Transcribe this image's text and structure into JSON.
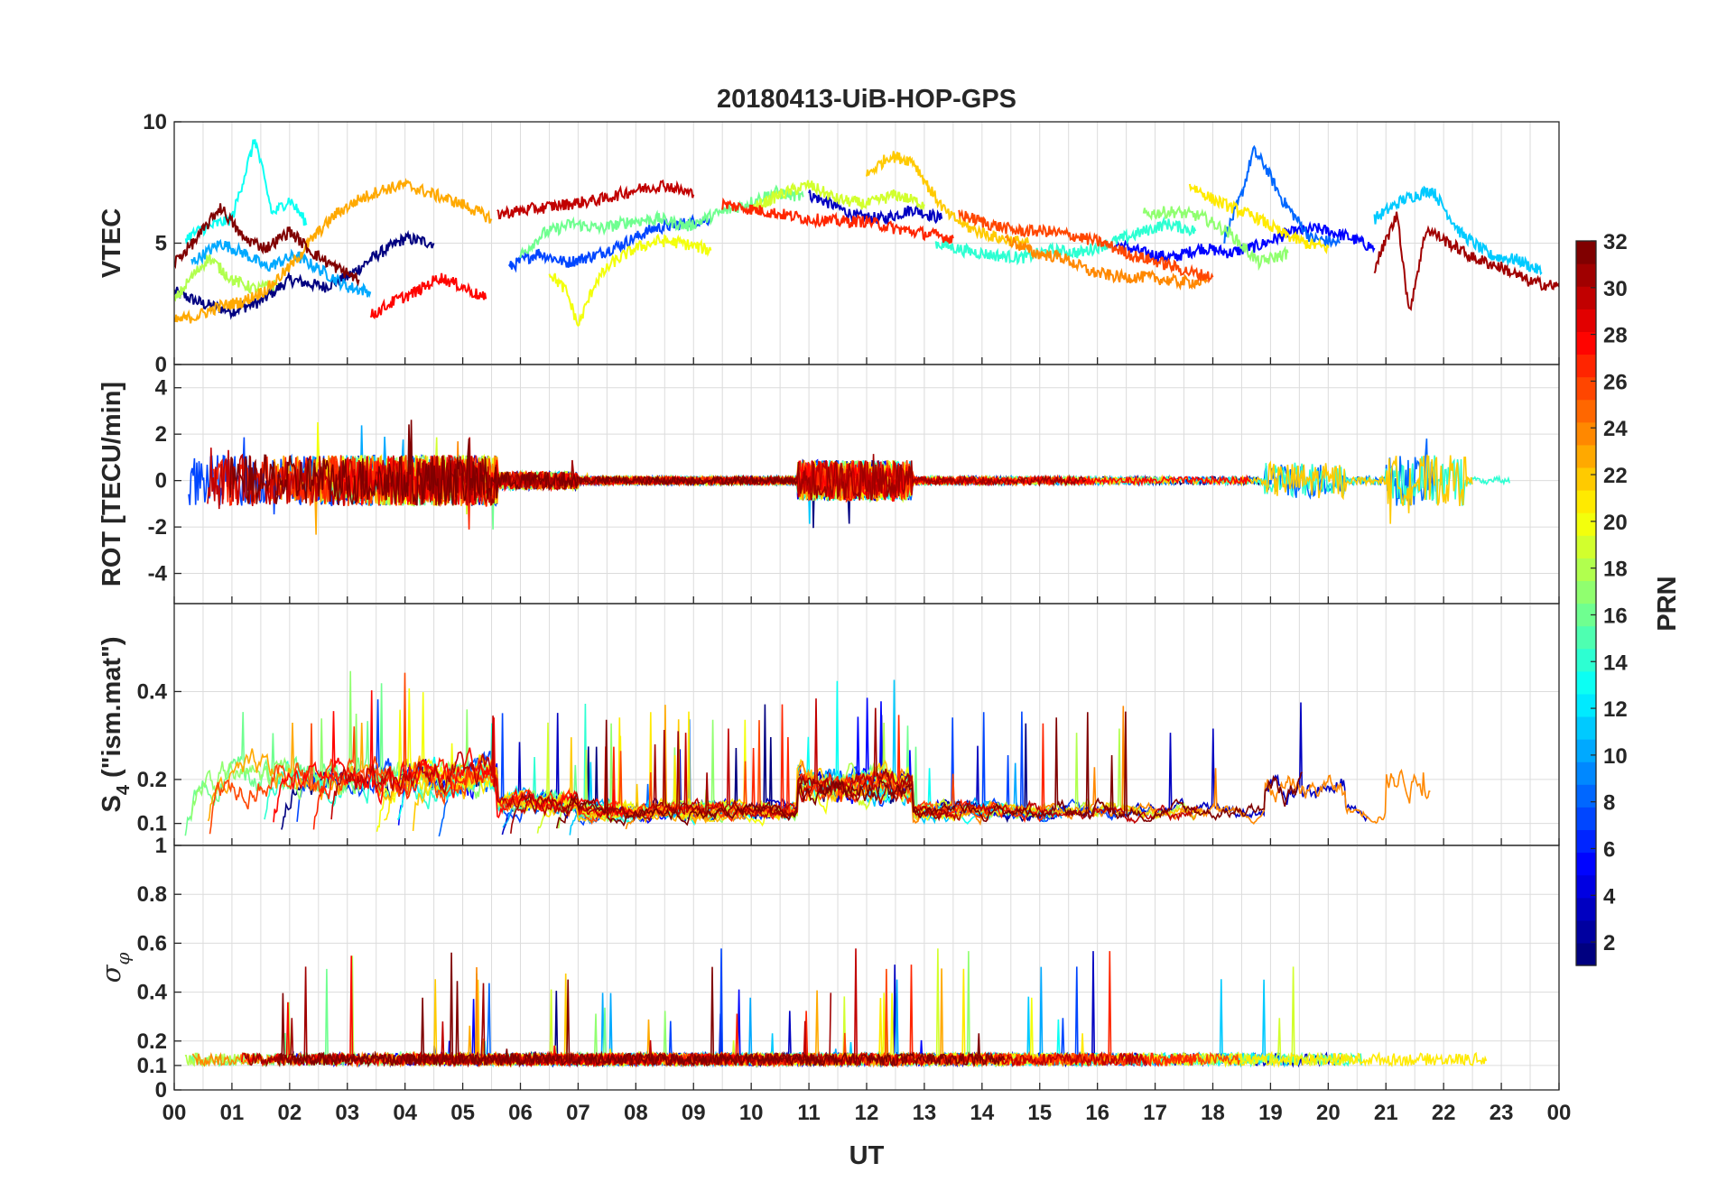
{
  "chart_data": {
    "type": "line",
    "title": "20180413-UiB-HOP-GPS",
    "xlabel": "UT",
    "x_tick_labels": [
      "00",
      "01",
      "02",
      "03",
      "04",
      "05",
      "06",
      "07",
      "08",
      "09",
      "10",
      "11",
      "12",
      "13",
      "14",
      "15",
      "16",
      "17",
      "18",
      "19",
      "20",
      "21",
      "22",
      "23",
      "00"
    ],
    "xlim": [
      0,
      24
    ],
    "grid": true,
    "panels": [
      {
        "id": "vtec",
        "ylabel": "VTEC",
        "ylim": [
          0,
          10
        ],
        "yticks": [
          0,
          5,
          10
        ],
        "yticklabels": [
          "0",
          "5",
          "10"
        ]
      },
      {
        "id": "rot",
        "ylabel": "ROT [TECU/min]",
        "ylim": [
          -5.3,
          5.0
        ],
        "yticks": [
          -4,
          -2,
          0,
          2,
          4
        ],
        "yticklabels": [
          "-4",
          "-2",
          "0",
          "2",
          "4"
        ]
      },
      {
        "id": "s4",
        "ylabel_main": "S",
        "ylabel_sub": "4",
        "ylabel_rest": " (\"ism.mat\")",
        "ylim": [
          0.05,
          0.6
        ],
        "yticks": [
          0.1,
          0.2,
          0.4
        ],
        "yticklabels": [
          "0.1",
          "0.2",
          "0.4"
        ]
      },
      {
        "id": "sigma",
        "ylabel_main": "σ",
        "ylabel_sub": "φ",
        "ylim": [
          0,
          1
        ],
        "yticks": [
          0,
          0.1,
          0.2,
          0.4,
          0.6,
          0.8,
          1
        ],
        "yticklabels": [
          "0",
          "0.1",
          "0.2",
          "0.4",
          "0.6",
          "0.8",
          "1"
        ]
      }
    ],
    "colorbar": {
      "label": "PRN",
      "range": [
        1,
        32
      ],
      "ticks": [
        2,
        4,
        6,
        8,
        10,
        12,
        14,
        16,
        18,
        20,
        22,
        24,
        26,
        28,
        30,
        32
      ],
      "colormap": "jet",
      "levels": 32
    },
    "series_note_prn": [
      1,
      3,
      5,
      7,
      8,
      10,
      11,
      13,
      14,
      16,
      17,
      18,
      19,
      20,
      21,
      22,
      23,
      24,
      26,
      27,
      28,
      30,
      31,
      32
    ],
    "vtec_series": [
      {
        "prn": 1,
        "points": [
          [
            0,
            3.0
          ],
          [
            0.5,
            2.5
          ],
          [
            1,
            2.2
          ],
          [
            1.5,
            2.6
          ],
          [
            2,
            3.5
          ],
          [
            2.6,
            3.2
          ],
          [
            3,
            3.6
          ],
          [
            3.5,
            4.5
          ],
          [
            4,
            5.2
          ],
          [
            4.5,
            5.0
          ]
        ]
      },
      {
        "prn": 3,
        "points": [
          [
            11,
            7.0
          ],
          [
            11.4,
            6.6
          ],
          [
            11.8,
            6.1
          ],
          [
            12.3,
            6.0
          ],
          [
            12.8,
            6.4
          ],
          [
            13.3,
            6.0
          ]
        ]
      },
      {
        "prn": 5,
        "points": [
          [
            16.3,
            5.0
          ],
          [
            16.8,
            4.6
          ],
          [
            17.3,
            4.4
          ],
          [
            17.8,
            4.8
          ],
          [
            18.3,
            4.6
          ],
          [
            18.8,
            4.9
          ],
          [
            19.3,
            5.4
          ],
          [
            19.8,
            5.6
          ],
          [
            20.3,
            5.3
          ],
          [
            20.8,
            4.8
          ]
        ]
      },
      {
        "prn": 7,
        "points": [
          [
            5.8,
            4.0
          ],
          [
            6.3,
            4.6
          ],
          [
            6.8,
            4.2
          ],
          [
            7.3,
            4.5
          ],
          [
            7.8,
            5.0
          ],
          [
            8.3,
            5.6
          ],
          [
            8.8,
            5.8
          ],
          [
            9.3,
            6.0
          ]
        ]
      },
      {
        "prn": 8,
        "points": [
          [
            18.2,
            5.2
          ],
          [
            18.5,
            7.0
          ],
          [
            18.7,
            8.8
          ],
          [
            18.9,
            8.2
          ],
          [
            19.2,
            6.8
          ],
          [
            19.7,
            5.2
          ],
          [
            20.2,
            5.0
          ]
        ]
      },
      {
        "prn": 10,
        "points": [
          [
            0.3,
            4.2
          ],
          [
            0.8,
            5.0
          ],
          [
            1.2,
            4.6
          ],
          [
            1.6,
            4.0
          ],
          [
            2.1,
            4.5
          ],
          [
            2.6,
            3.8
          ],
          [
            3.0,
            3.2
          ],
          [
            3.4,
            3.0
          ]
        ]
      },
      {
        "prn": 11,
        "points": [
          [
            20.8,
            6.0
          ],
          [
            21.3,
            6.8
          ],
          [
            21.8,
            7.2
          ],
          [
            22.3,
            5.4
          ],
          [
            22.8,
            4.5
          ],
          [
            23.3,
            4.3
          ],
          [
            23.7,
            3.8
          ]
        ]
      },
      {
        "prn": 13,
        "points": [
          [
            0.2,
            5.2
          ],
          [
            0.5,
            5.6
          ],
          [
            1.0,
            6.0
          ],
          [
            1.4,
            9.3
          ],
          [
            1.7,
            6.2
          ],
          [
            2.0,
            6.8
          ],
          [
            2.3,
            5.8
          ]
        ]
      },
      {
        "prn": 14,
        "points": [
          [
            13.2,
            5.0
          ],
          [
            13.7,
            4.7
          ],
          [
            14.2,
            4.5
          ],
          [
            14.7,
            4.4
          ],
          [
            15.2,
            4.7
          ],
          [
            15.7,
            4.6
          ],
          [
            16.2,
            5.0
          ],
          [
            16.7,
            5.4
          ],
          [
            17.2,
            5.8
          ],
          [
            17.7,
            5.5
          ]
        ]
      },
      {
        "prn": 16,
        "points": [
          [
            6.0,
            4.5
          ],
          [
            6.4,
            5.4
          ],
          [
            6.9,
            5.8
          ],
          [
            7.4,
            5.6
          ],
          [
            7.9,
            5.9
          ],
          [
            8.4,
            6.0
          ],
          [
            8.9,
            5.7
          ],
          [
            9.4,
            6.2
          ],
          [
            9.9,
            6.6
          ],
          [
            10.4,
            7.1
          ],
          [
            10.9,
            6.9
          ]
        ]
      },
      {
        "prn": 17,
        "points": [
          [
            16.8,
            6.2
          ],
          [
            17.3,
            6.3
          ],
          [
            17.8,
            6.1
          ],
          [
            18.3,
            5.4
          ],
          [
            18.8,
            4.2
          ],
          [
            19.3,
            4.6
          ]
        ]
      },
      {
        "prn": 18,
        "points": [
          [
            0.0,
            2.6
          ],
          [
            0.3,
            3.6
          ],
          [
            0.6,
            4.4
          ],
          [
            1.0,
            3.5
          ],
          [
            1.4,
            3.1
          ],
          [
            1.8,
            3.3
          ]
        ]
      },
      {
        "prn": 19,
        "points": [
          [
            10.0,
            6.4
          ],
          [
            10.5,
            7.0
          ],
          [
            11.0,
            7.4
          ],
          [
            11.5,
            6.8
          ],
          [
            12.0,
            6.6
          ],
          [
            12.5,
            7.0
          ],
          [
            13.0,
            6.6
          ]
        ]
      },
      {
        "prn": 20,
        "points": [
          [
            6.5,
            3.8
          ],
          [
            6.8,
            3.0
          ],
          [
            7.0,
            1.6
          ],
          [
            7.3,
            3.4
          ],
          [
            7.6,
            4.2
          ],
          [
            8.0,
            4.8
          ],
          [
            8.4,
            5.1
          ],
          [
            8.8,
            5.0
          ],
          [
            9.3,
            4.7
          ]
        ]
      },
      {
        "prn": 21,
        "points": [
          [
            17.6,
            7.4
          ],
          [
            18.0,
            6.8
          ],
          [
            18.4,
            6.4
          ],
          [
            18.8,
            6.0
          ],
          [
            19.2,
            5.4
          ],
          [
            19.6,
            5.0
          ],
          [
            20.0,
            4.8
          ]
        ]
      },
      {
        "prn": 22,
        "points": [
          [
            12.0,
            7.8
          ],
          [
            12.4,
            8.6
          ],
          [
            12.8,
            8.4
          ],
          [
            13.1,
            7.2
          ],
          [
            13.4,
            6.2
          ],
          [
            13.8,
            5.6
          ],
          [
            14.3,
            5.2
          ],
          [
            14.8,
            5.0
          ]
        ]
      },
      {
        "prn": 23,
        "points": [
          [
            0.0,
            1.8
          ],
          [
            0.4,
            2.0
          ],
          [
            0.8,
            2.4
          ],
          [
            1.2,
            2.6
          ],
          [
            1.6,
            3.1
          ],
          [
            2.0,
            4.0
          ],
          [
            2.4,
            5.2
          ],
          [
            2.8,
            6.2
          ],
          [
            3.2,
            6.8
          ],
          [
            3.6,
            7.2
          ],
          [
            4.0,
            7.4
          ],
          [
            4.5,
            7.0
          ],
          [
            5.0,
            6.6
          ],
          [
            5.5,
            6.0
          ]
        ]
      },
      {
        "prn": 24,
        "points": [
          [
            14.4,
            5.2
          ],
          [
            14.9,
            4.6
          ],
          [
            15.4,
            4.4
          ],
          [
            15.9,
            3.8
          ],
          [
            16.4,
            3.6
          ],
          [
            16.9,
            3.6
          ],
          [
            17.4,
            3.4
          ],
          [
            17.9,
            3.4
          ]
        ]
      },
      {
        "prn": 26,
        "points": [
          [
            13.6,
            6.2
          ],
          [
            14.1,
            5.8
          ],
          [
            14.6,
            5.5
          ],
          [
            15.1,
            5.5
          ],
          [
            15.6,
            5.3
          ],
          [
            16.1,
            5.0
          ],
          [
            16.6,
            4.5
          ],
          [
            17.1,
            4.2
          ],
          [
            17.6,
            3.8
          ],
          [
            18.0,
            3.6
          ]
        ]
      },
      {
        "prn": 27,
        "points": [
          [
            9.5,
            6.6
          ],
          [
            10.0,
            6.4
          ],
          [
            10.5,
            6.2
          ],
          [
            11.0,
            6.0
          ],
          [
            11.5,
            5.9
          ],
          [
            12.0,
            5.9
          ],
          [
            12.5,
            5.6
          ],
          [
            13.0,
            5.4
          ],
          [
            13.5,
            5.2
          ]
        ]
      },
      {
        "prn": 28,
        "points": [
          [
            3.4,
            2.0
          ],
          [
            3.8,
            2.6
          ],
          [
            4.2,
            3.0
          ],
          [
            4.6,
            3.6
          ],
          [
            5.0,
            3.2
          ],
          [
            5.4,
            2.7
          ]
        ]
      },
      {
        "prn": 30,
        "points": [
          [
            5.6,
            6.2
          ],
          [
            6.2,
            6.4
          ],
          [
            6.8,
            6.6
          ],
          [
            7.4,
            6.8
          ],
          [
            8.0,
            7.2
          ],
          [
            8.5,
            7.4
          ],
          [
            9.0,
            7.0
          ]
        ]
      },
      {
        "prn": 31,
        "points": [
          [
            20.8,
            4.0
          ],
          [
            21.2,
            6.2
          ],
          [
            21.4,
            2.1
          ],
          [
            21.7,
            5.6
          ],
          [
            22.1,
            5.0
          ],
          [
            22.5,
            4.4
          ],
          [
            23.0,
            4.0
          ],
          [
            23.5,
            3.4
          ],
          [
            24,
            3.2
          ]
        ]
      },
      {
        "prn": 32,
        "points": [
          [
            0.0,
            4.2
          ],
          [
            0.4,
            5.2
          ],
          [
            0.8,
            6.5
          ],
          [
            1.2,
            5.2
          ],
          [
            1.6,
            4.8
          ],
          [
            2.0,
            5.5
          ],
          [
            2.4,
            4.6
          ],
          [
            2.8,
            4.0
          ],
          [
            3.2,
            3.5
          ]
        ]
      }
    ]
  }
}
